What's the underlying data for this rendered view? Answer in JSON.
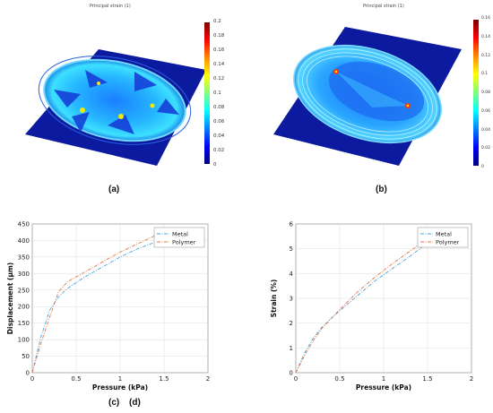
{
  "panels": {
    "a": {
      "label": "(a)",
      "title": "Principal strain (1)",
      "colorbar_ticks": [
        "0.2",
        "0.18",
        "0.16",
        "0.14",
        "0.12",
        "0.1",
        "0.08",
        "0.06",
        "0.04",
        "0.02",
        "0"
      ]
    },
    "b": {
      "label": "(b)",
      "title": "Principal strain (1)",
      "colorbar_ticks": [
        "0.16",
        "0.14",
        "0.12",
        "0.1",
        "0.08",
        "0.06",
        "0.04",
        "0.02",
        "0"
      ]
    },
    "c": {
      "label": "(c)"
    },
    "d": {
      "label": "(d)"
    }
  },
  "colors": {
    "metal": "#4aa3df",
    "polymer": "#e07a4a",
    "heat_low": "#00007f",
    "heat_high": "#7f0000"
  },
  "chart_data": [
    {
      "type": "line",
      "xlabel": "Pressure (kPa)",
      "ylabel": "Displacement (μm)",
      "xlim": [
        0,
        2
      ],
      "ylim": [
        0,
        450
      ],
      "xticks": [
        "0",
        "0.5",
        "1",
        "1.5",
        "2"
      ],
      "yticks": [
        "0",
        "50",
        "100",
        "150",
        "200",
        "250",
        "300",
        "350",
        "400",
        "450"
      ],
      "grid": true,
      "legend": "top-right",
      "series": [
        {
          "name": "Metal",
          "x": [
            0,
            0.1,
            0.2,
            0.3,
            0.4,
            0.6,
            0.8,
            1.0,
            1.2,
            1.4
          ],
          "y": [
            0,
            110,
            190,
            230,
            255,
            290,
            320,
            350,
            375,
            395
          ]
        },
        {
          "name": "Polymer",
          "x": [
            0,
            0.1,
            0.2,
            0.3,
            0.4,
            0.6,
            0.8,
            1.0,
            1.2,
            1.4
          ],
          "y": [
            0,
            90,
            170,
            245,
            275,
            305,
            335,
            365,
            390,
            415
          ]
        }
      ]
    },
    {
      "type": "line",
      "xlabel": "Pressure (kPa)",
      "ylabel": "Strain (%)",
      "xlim": [
        0,
        2
      ],
      "ylim": [
        0,
        6
      ],
      "xticks": [
        "0",
        "0.5",
        "1",
        "1.5",
        "2"
      ],
      "yticks": [
        "0",
        "1",
        "2",
        "3",
        "4",
        "5",
        "6"
      ],
      "grid": true,
      "legend": "top-right",
      "series": [
        {
          "name": "Metal",
          "x": [
            0,
            0.1,
            0.2,
            0.3,
            0.5,
            0.7,
            0.9,
            1.1,
            1.3,
            1.45
          ],
          "y": [
            0,
            0.8,
            1.4,
            1.85,
            2.5,
            3.1,
            3.7,
            4.2,
            4.7,
            5.1
          ]
        },
        {
          "name": "Polymer",
          "x": [
            0,
            0.1,
            0.2,
            0.3,
            0.5,
            0.7,
            0.9,
            1.1,
            1.3,
            1.45
          ],
          "y": [
            0,
            0.7,
            1.3,
            1.8,
            2.55,
            3.25,
            3.85,
            4.4,
            4.9,
            5.3
          ]
        }
      ]
    }
  ]
}
